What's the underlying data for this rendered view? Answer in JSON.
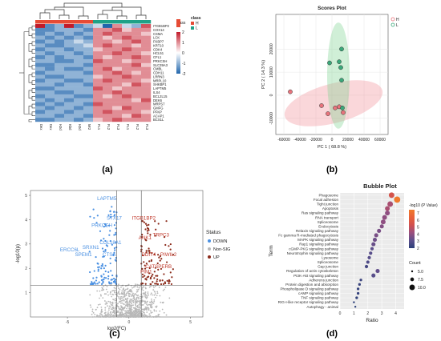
{
  "panel_labels": {
    "a": "(a)",
    "b": "(b)",
    "c": "(c)",
    "d": "(d)"
  },
  "chart_data": [
    {
      "type": "heatmap",
      "panel": "a",
      "rows": [
        "ITGB1BP2",
        "COX14",
        "CSMA",
        "LCK",
        "FKBP7",
        "KRT10",
        "CDK4",
        "HCL51",
        "CFL1",
        "PRKCSH",
        "SLC39A3",
        "CMBL",
        "CDH11",
        "LRRN3",
        "MRPL10",
        "SHKBP1",
        "LAPTM5",
        "ILS4",
        "BCL2L15",
        "DEK6",
        "MRPS7",
        "GMFG",
        "PFKP",
        "ACAP1",
        "BCS1L"
      ],
      "columns": [
        "H1",
        "H2",
        "H3",
        "H4",
        "H5",
        "H6",
        "L1",
        "L2",
        "L3",
        "L4",
        "L5",
        "L6"
      ],
      "column_labels": [
        "Dex",
        "Dex",
        "H2d",
        "Kbd",
        "H2d",
        "Mr2",
        "FL1",
        "FL2",
        "FL3",
        "FL1",
        "FL2",
        "FL3"
      ],
      "column_groups": [
        "H",
        "H",
        "H",
        "H",
        "H",
        "H",
        "L",
        "L",
        "L",
        "L",
        "L",
        "L"
      ],
      "legend_title": "class",
      "group_legend": [
        {
          "name": "H",
          "color": "#e64b35"
        },
        {
          "name": "L",
          "color": "#1fa187"
        }
      ],
      "color_scale": {
        "ticks": [
          "2",
          "1",
          "0",
          "-1",
          "-2"
        ],
        "min": -2,
        "max": 2,
        "high": "#c21b2a",
        "mid": "#ffffff",
        "low": "#2166ac"
      },
      "values": [
        [
          2,
          -1.5,
          -1,
          2,
          -1.5,
          -1,
          -0.5,
          -2,
          1,
          -0.5,
          -1,
          1.5
        ],
        [
          -1.5,
          -1.5,
          -1,
          -1,
          -1,
          -1.5,
          1,
          1,
          1.5,
          0.5,
          1,
          1
        ],
        [
          -1.5,
          -1,
          -1.5,
          -1,
          -1.5,
          -1,
          1,
          1.5,
          1,
          1,
          1,
          0.5
        ],
        [
          -1,
          -1.5,
          -1,
          -1.5,
          -1,
          -1.5,
          1,
          0.5,
          1,
          1.5,
          1,
          1
        ],
        [
          -1.5,
          -1,
          -1.5,
          -1,
          -0.5,
          -1,
          1,
          1,
          0.5,
          1,
          1.5,
          1
        ],
        [
          -1,
          -1.5,
          -1.5,
          -1,
          -1,
          -0.5,
          1,
          1.5,
          1,
          1,
          0.5,
          1
        ],
        [
          -1.5,
          -1,
          -1,
          -1.5,
          -1,
          -1,
          0.5,
          1,
          1,
          1.5,
          1,
          1
        ],
        [
          -1,
          -1.5,
          -1,
          -1,
          -1.5,
          -1,
          1,
          1,
          1.5,
          1,
          1,
          0.5
        ],
        [
          -1.5,
          -1,
          -1.5,
          -1,
          -1,
          -1.5,
          1,
          0.5,
          1,
          1,
          1.5,
          1
        ],
        [
          -1,
          -1,
          -1.5,
          -1.5,
          -1,
          -1,
          1.5,
          1,
          1,
          0.5,
          1,
          1
        ],
        [
          -1.5,
          -1.5,
          -1,
          -1,
          -1,
          -1.5,
          1,
          1,
          1,
          1,
          1.5,
          0.5
        ],
        [
          -1,
          -1.5,
          -1,
          -1.5,
          -1.5,
          -1,
          1,
          1.5,
          0.5,
          1,
          1,
          1
        ],
        [
          -1.5,
          -1,
          -1,
          -1,
          -1,
          -1.5,
          1,
          1,
          1.5,
          1,
          0.5,
          1
        ],
        [
          -1,
          -1.5,
          -1.5,
          -1,
          -1,
          -1,
          0.5,
          1,
          1,
          1.5,
          1,
          1
        ],
        [
          -1.5,
          -1,
          -1,
          -1.5,
          -1.5,
          -1,
          1,
          1.5,
          1,
          1,
          1,
          0.5
        ],
        [
          -1,
          -1,
          -1.5,
          -1,
          -1,
          -1.5,
          1,
          1,
          1,
          0.5,
          1.5,
          1
        ],
        [
          -1.5,
          -1.5,
          -1,
          -1,
          -1,
          -1,
          1.5,
          1,
          0.5,
          1,
          1,
          1
        ],
        [
          -1,
          -1,
          -1.5,
          -1.5,
          -1,
          -1,
          1,
          1,
          1.5,
          1,
          1,
          1
        ],
        [
          -1.5,
          -1,
          -1,
          -1,
          -1.5,
          -1.5,
          1,
          0.5,
          1,
          1.5,
          1,
          1
        ],
        [
          -1,
          -1.5,
          -1,
          -1.5,
          -1,
          -1,
          1,
          1,
          1,
          1,
          0.5,
          1.5
        ],
        [
          -1.5,
          -1,
          -1.5,
          -1,
          -1,
          -1.5,
          1.5,
          1,
          1,
          1,
          1,
          1
        ],
        [
          -1,
          -1.5,
          -1,
          -1,
          -1.5,
          -1,
          1,
          1,
          0.5,
          1.5,
          1,
          1
        ],
        [
          -1.5,
          -1,
          -1,
          -1.5,
          -1,
          -1,
          1,
          1.5,
          1,
          1,
          1,
          0.5
        ],
        [
          -1,
          -1,
          -1.5,
          -1,
          -1,
          -1.5,
          1,
          1,
          1,
          0.5,
          1.5,
          1
        ],
        [
          -1.5,
          -1.5,
          -1,
          -1,
          -1.5,
          -1,
          0.5,
          1,
          1.5,
          1,
          1,
          1
        ]
      ]
    },
    {
      "type": "scatter",
      "panel": "b",
      "title": "Scores Plot",
      "xlabel": "PC 1 ( 68.8 %)",
      "ylabel": "PC 2 ( 14.3 %)",
      "xlim": [
        -70000,
        70000
      ],
      "ylim": [
        -17000,
        35000
      ],
      "xticks": [
        -60000,
        -40000,
        -20000,
        0,
        20000,
        40000,
        60000
      ],
      "yticks": [
        -10000,
        0,
        10000,
        20000
      ],
      "legend_position": "top-right",
      "series": [
        {
          "name": "H",
          "color": "#e8747c",
          "fill": "rgba(240,140,150,0.35)",
          "points": [
            [
              -52000,
              1500
            ],
            [
              -13000,
              -4500
            ],
            [
              -5000,
              -8000
            ],
            [
              4000,
              -5500
            ],
            [
              9000,
              -5000
            ],
            [
              14000,
              -7500
            ]
          ],
          "ellipse": {
            "cx": 2000,
            "cy": -3500,
            "rx": 63000,
            "ry": 8500,
            "angle_deg": -15
          }
        },
        {
          "name": "L",
          "color": "#3aa87a",
          "fill": "rgba(120,210,140,0.35)",
          "points": [
            [
              12000,
              20000
            ],
            [
              -3000,
              14000
            ],
            [
              9000,
              14500
            ],
            [
              11000,
              12000
            ],
            [
              12000,
              6500
            ],
            [
              13000,
              -5500
            ]
          ],
          "ellipse": {
            "cx": 8000,
            "cy": 8500,
            "rx": 14000,
            "ry": 23000,
            "angle_deg": 0
          }
        }
      ]
    },
    {
      "type": "scatter",
      "panel": "c",
      "xlabel": "log2(FC)",
      "ylabel": "-log10(p)",
      "xlim": [
        -8,
        6
      ],
      "ylim": [
        0,
        5.2
      ],
      "xticks": [
        -5,
        0,
        5
      ],
      "yticks": [
        1,
        2,
        3,
        4,
        5
      ],
      "threshold_lines": {
        "x": [
          -1,
          1
        ],
        "y": 1.3
      },
      "legend_title": "Status",
      "legend": [
        {
          "name": "DOWN",
          "color": "#4a90e2"
        },
        {
          "name": "Non-SIG",
          "color": "#b8b8b8"
        },
        {
          "name": "UP",
          "color": "#8b2a1a"
        }
      ],
      "labels_down": [
        {
          "text": "LAPTM5",
          "x": -1.8,
          "y": 4.8
        },
        {
          "text": "STX17",
          "x": -1.2,
          "y": 4.0
        },
        {
          "text": "PRKCSH",
          "x": -2.2,
          "y": 3.7
        },
        {
          "text": "COL18A1",
          "x": -1.5,
          "y": 3.0
        },
        {
          "text": "SRXN1",
          "x": -3.1,
          "y": 2.8
        },
        {
          "text": "ERCC6L",
          "x": -4.8,
          "y": 2.7
        },
        {
          "text": "SPEM1",
          "x": -3.7,
          "y": 2.5
        },
        {
          "text": "CTSA",
          "x": -1.6,
          "y": 2.5
        }
      ],
      "labels_up": [
        {
          "text": "ITGB1BP2",
          "x": 1.2,
          "y": 4.0
        },
        {
          "text": "TRPC3",
          "x": 2.6,
          "y": 3.3
        },
        {
          "text": "ANK1",
          "x": 1.3,
          "y": 3.2
        },
        {
          "text": "PIWIL2",
          "x": 3.2,
          "y": 2.5
        },
        {
          "text": "DDIT4",
          "x": 1.6,
          "y": 2.5
        },
        {
          "text": "CATSPERB",
          "x": 2.4,
          "y": 2.0
        },
        {
          "text": "PIM1",
          "x": 1.4,
          "y": 1.8
        }
      ]
    },
    {
      "type": "scatter",
      "panel": "d",
      "title": "Bubble Plot",
      "xlabel": "Ratio",
      "ylabel": "Term",
      "xlim": [
        0,
        4.6
      ],
      "xticks": [
        0,
        1,
        2,
        3,
        4
      ],
      "color_legend_title": "-log10 (P Value)",
      "color_legend_ticks": [
        7,
        6,
        5,
        4,
        3,
        2
      ],
      "color_range": [
        2,
        7.5
      ],
      "size_legend_title": "Count",
      "size_legend": [
        5.0,
        7.5,
        10.0
      ],
      "size_legend_labels": [
        "5.0",
        "7.5",
        "10.0"
      ],
      "terms": [
        {
          "name": "Phagosome",
          "ratio": 3.7,
          "logp": 5.5,
          "count": 10
        },
        {
          "name": "Focal adhesion",
          "ratio": 4.1,
          "logp": 7.5,
          "count": 11
        },
        {
          "name": "Tight junction",
          "ratio": 3.6,
          "logp": 4.5,
          "count": 10
        },
        {
          "name": "Apoptosis",
          "ratio": 3.4,
          "logp": 4.5,
          "count": 9
        },
        {
          "name": "Ras signaling pathway",
          "ratio": 3.4,
          "logp": 4.0,
          "count": 9
        },
        {
          "name": "RNA transport",
          "ratio": 3.2,
          "logp": 4.0,
          "count": 9
        },
        {
          "name": "Spliceosome",
          "ratio": 3.1,
          "logp": 4.0,
          "count": 9
        },
        {
          "name": "Endocytosis",
          "ratio": 3.0,
          "logp": 3.8,
          "count": 8
        },
        {
          "name": "Relaxin signaling pathway",
          "ratio": 2.8,
          "logp": 3.6,
          "count": 8
        },
        {
          "name": "Fc gamma R-mediated phagocytosis",
          "ratio": 2.6,
          "logp": 3.6,
          "count": 8
        },
        {
          "name": "MAPK signaling pathway",
          "ratio": 2.5,
          "logp": 3.4,
          "count": 8
        },
        {
          "name": "Rap1 signaling pathway",
          "ratio": 2.4,
          "logp": 3.3,
          "count": 8
        },
        {
          "name": "cGMP-PKG signaling pathway",
          "ratio": 2.3,
          "logp": 3.1,
          "count": 7
        },
        {
          "name": "Neurotrophin signaling pathway",
          "ratio": 2.2,
          "logp": 3.0,
          "count": 7
        },
        {
          "name": "Lysosome",
          "ratio": 2.1,
          "logp": 3.0,
          "count": 7
        },
        {
          "name": "Spliceosome",
          "ratio": 2.0,
          "logp": 2.8,
          "count": 7
        },
        {
          "name": "Gap junction",
          "ratio": 1.9,
          "logp": 2.6,
          "count": 7
        },
        {
          "name": "Regulation of actin cytoskeleton",
          "ratio": 2.7,
          "logp": 3.2,
          "count": 8
        },
        {
          "name": "PI3K-Akt signaling pathway",
          "ratio": 2.4,
          "logp": 3.0,
          "count": 8
        },
        {
          "name": "Adherens junction",
          "ratio": 1.5,
          "logp": 2.4,
          "count": 6
        },
        {
          "name": "Protein digestion and absorption",
          "ratio": 1.4,
          "logp": 2.3,
          "count": 6
        },
        {
          "name": "Phospholipase D signaling pathway",
          "ratio": 1.3,
          "logp": 2.2,
          "count": 6
        },
        {
          "name": "cAMP signaling pathway",
          "ratio": 1.3,
          "logp": 2.2,
          "count": 6
        },
        {
          "name": "TNF signaling pathway",
          "ratio": 1.2,
          "logp": 2.1,
          "count": 6
        },
        {
          "name": "RIG-I-like receptor signaling pathway",
          "ratio": 1.0,
          "logp": 2.0,
          "count": 5
        },
        {
          "name": "Autophagy - animal",
          "ratio": 1.1,
          "logp": 2.0,
          "count": 5
        }
      ]
    }
  ]
}
